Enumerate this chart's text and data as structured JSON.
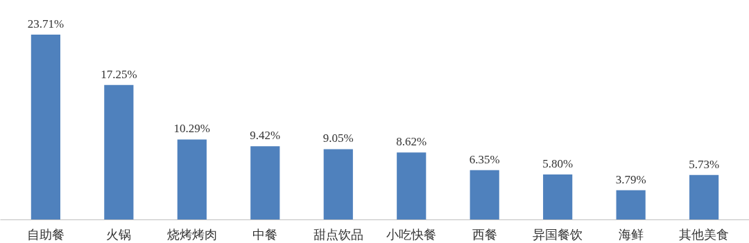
{
  "chart_data": {
    "type": "bar",
    "categories": [
      "自助餐",
      "火锅",
      "烧烤烤肉",
      "中餐",
      "甜点饮品",
      "小吃快餐",
      "西餐",
      "异国餐饮",
      "海鲜",
      "其他美食"
    ],
    "values": [
      23.71,
      17.25,
      10.29,
      9.42,
      9.05,
      8.62,
      6.35,
      5.8,
      3.79,
      5.73
    ],
    "value_labels": [
      "23.71%",
      "17.25%",
      "10.29%",
      "9.42%",
      "9.05%",
      "8.62%",
      "6.35%",
      "5.80%",
      "3.79%",
      "5.73%"
    ],
    "color": "#4f81bd",
    "grid": false
  }
}
